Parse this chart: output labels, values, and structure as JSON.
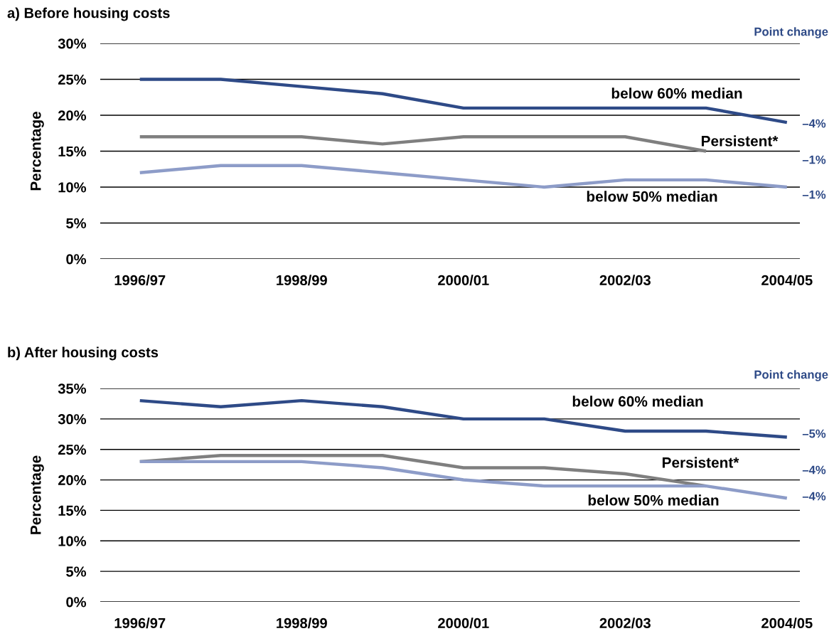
{
  "chart_data": [
    {
      "type": "line",
      "title": "a) Before housing costs",
      "ylabel": "Percentage",
      "categories": [
        "1996/97",
        null,
        "1998/99",
        null,
        "2000/01",
        null,
        "2002/03",
        null,
        "2004/05"
      ],
      "series": [
        {
          "name": "below 60% median",
          "color": "#2e4a87",
          "values": [
            25,
            25,
            24,
            23,
            21,
            21,
            21,
            21,
            19
          ]
        },
        {
          "name": "Persistent*",
          "color": "#7f7f7f",
          "values": [
            17,
            17,
            17,
            16,
            17,
            17,
            17,
            15,
            null
          ]
        },
        {
          "name": "below 50% median",
          "color": "#8d9cc8",
          "values": [
            12,
            13,
            13,
            12,
            11,
            10,
            11,
            11,
            10
          ]
        }
      ],
      "annotations": [
        "Point change",
        "–4%",
        "–1%",
        "–1%"
      ],
      "ylim": [
        0,
        30
      ],
      "yticks": [
        {
          "value": 0,
          "label": "0%"
        },
        {
          "value": 5,
          "label": "5%"
        },
        {
          "value": 10,
          "label": "10%"
        },
        {
          "value": 15,
          "label": "15%"
        },
        {
          "value": 20,
          "label": "20%"
        },
        {
          "value": 25,
          "label": "25%"
        },
        {
          "value": 30,
          "label": "30%"
        }
      ],
      "grid": "y",
      "legend": false,
      "marker": "none",
      "line_style": "solid"
    },
    {
      "type": "line",
      "title": "b) After housing costs",
      "ylabel": "Percentage",
      "categories": [
        "1996/97",
        null,
        "1998/99",
        null,
        "2000/01",
        null,
        "2002/03",
        null,
        "2004/05"
      ],
      "series": [
        {
          "name": "below 60% median",
          "color": "#2e4a87",
          "values": [
            33,
            32,
            33,
            32,
            30,
            30,
            28,
            28,
            27
          ]
        },
        {
          "name": "Persistent*",
          "color": "#7f7f7f",
          "values": [
            23,
            24,
            24,
            24,
            22,
            22,
            21,
            19,
            null
          ]
        },
        {
          "name": "below 50% median",
          "color": "#8d9cc8",
          "values": [
            23,
            23,
            23,
            22,
            20,
            19,
            19,
            19,
            17
          ]
        }
      ],
      "annotations": [
        "Point change",
        "–5%",
        "–4%",
        "–4%"
      ],
      "ylim": [
        0,
        35
      ],
      "yticks": [
        {
          "value": 0,
          "label": "0%"
        },
        {
          "value": 5,
          "label": "5%"
        },
        {
          "value": 10,
          "label": "10%"
        },
        {
          "value": 15,
          "label": "15%"
        },
        {
          "value": 20,
          "label": "20%"
        },
        {
          "value": 25,
          "label": "25%"
        },
        {
          "value": 30,
          "label": "30%"
        },
        {
          "value": 35,
          "label": "35%"
        }
      ],
      "grid": "y",
      "legend": false,
      "marker": "none",
      "line_style": "solid"
    }
  ]
}
